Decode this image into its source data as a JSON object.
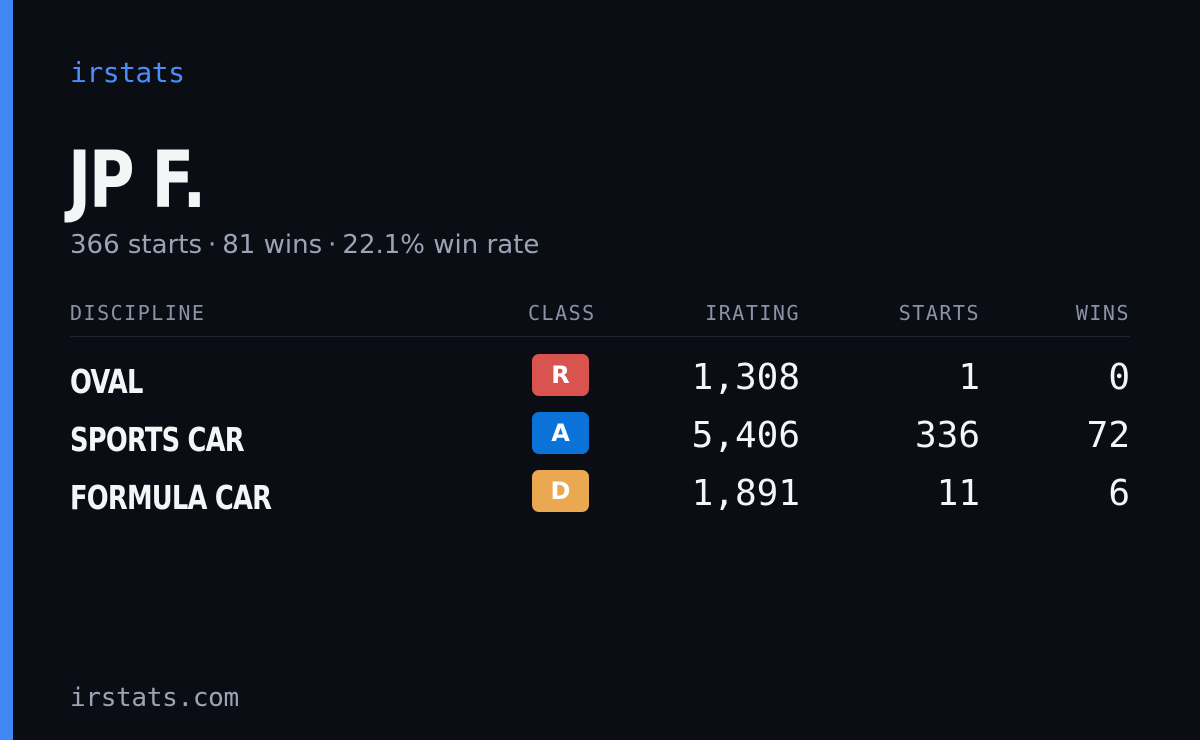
{
  "brand": "irstats",
  "driver": {
    "name": "JP F.",
    "starts_text": "366 starts",
    "wins_text": "81 wins",
    "win_rate_text": "22.1% win rate",
    "separator": "·"
  },
  "table": {
    "headers": {
      "discipline": "DISCIPLINE",
      "class": "CLASS",
      "irating": "IRATING",
      "starts": "STARTS",
      "wins": "WINS"
    },
    "rows": [
      {
        "discipline": "OVAL",
        "class": "R",
        "class_color": "#d9534f",
        "irating": "1,308",
        "starts": "1",
        "wins": "0"
      },
      {
        "discipline": "SPORTS CAR",
        "class": "A",
        "class_color": "#0a72d8",
        "irating": "5,406",
        "starts": "336",
        "wins": "72"
      },
      {
        "discipline": "FORMULA CAR",
        "class": "D",
        "class_color": "#eaa950",
        "irating": "1,891",
        "starts": "11",
        "wins": "6"
      }
    ]
  },
  "footer": "irstats.com",
  "colors": {
    "background": "#0a0d14",
    "accent": "#4186f5"
  }
}
